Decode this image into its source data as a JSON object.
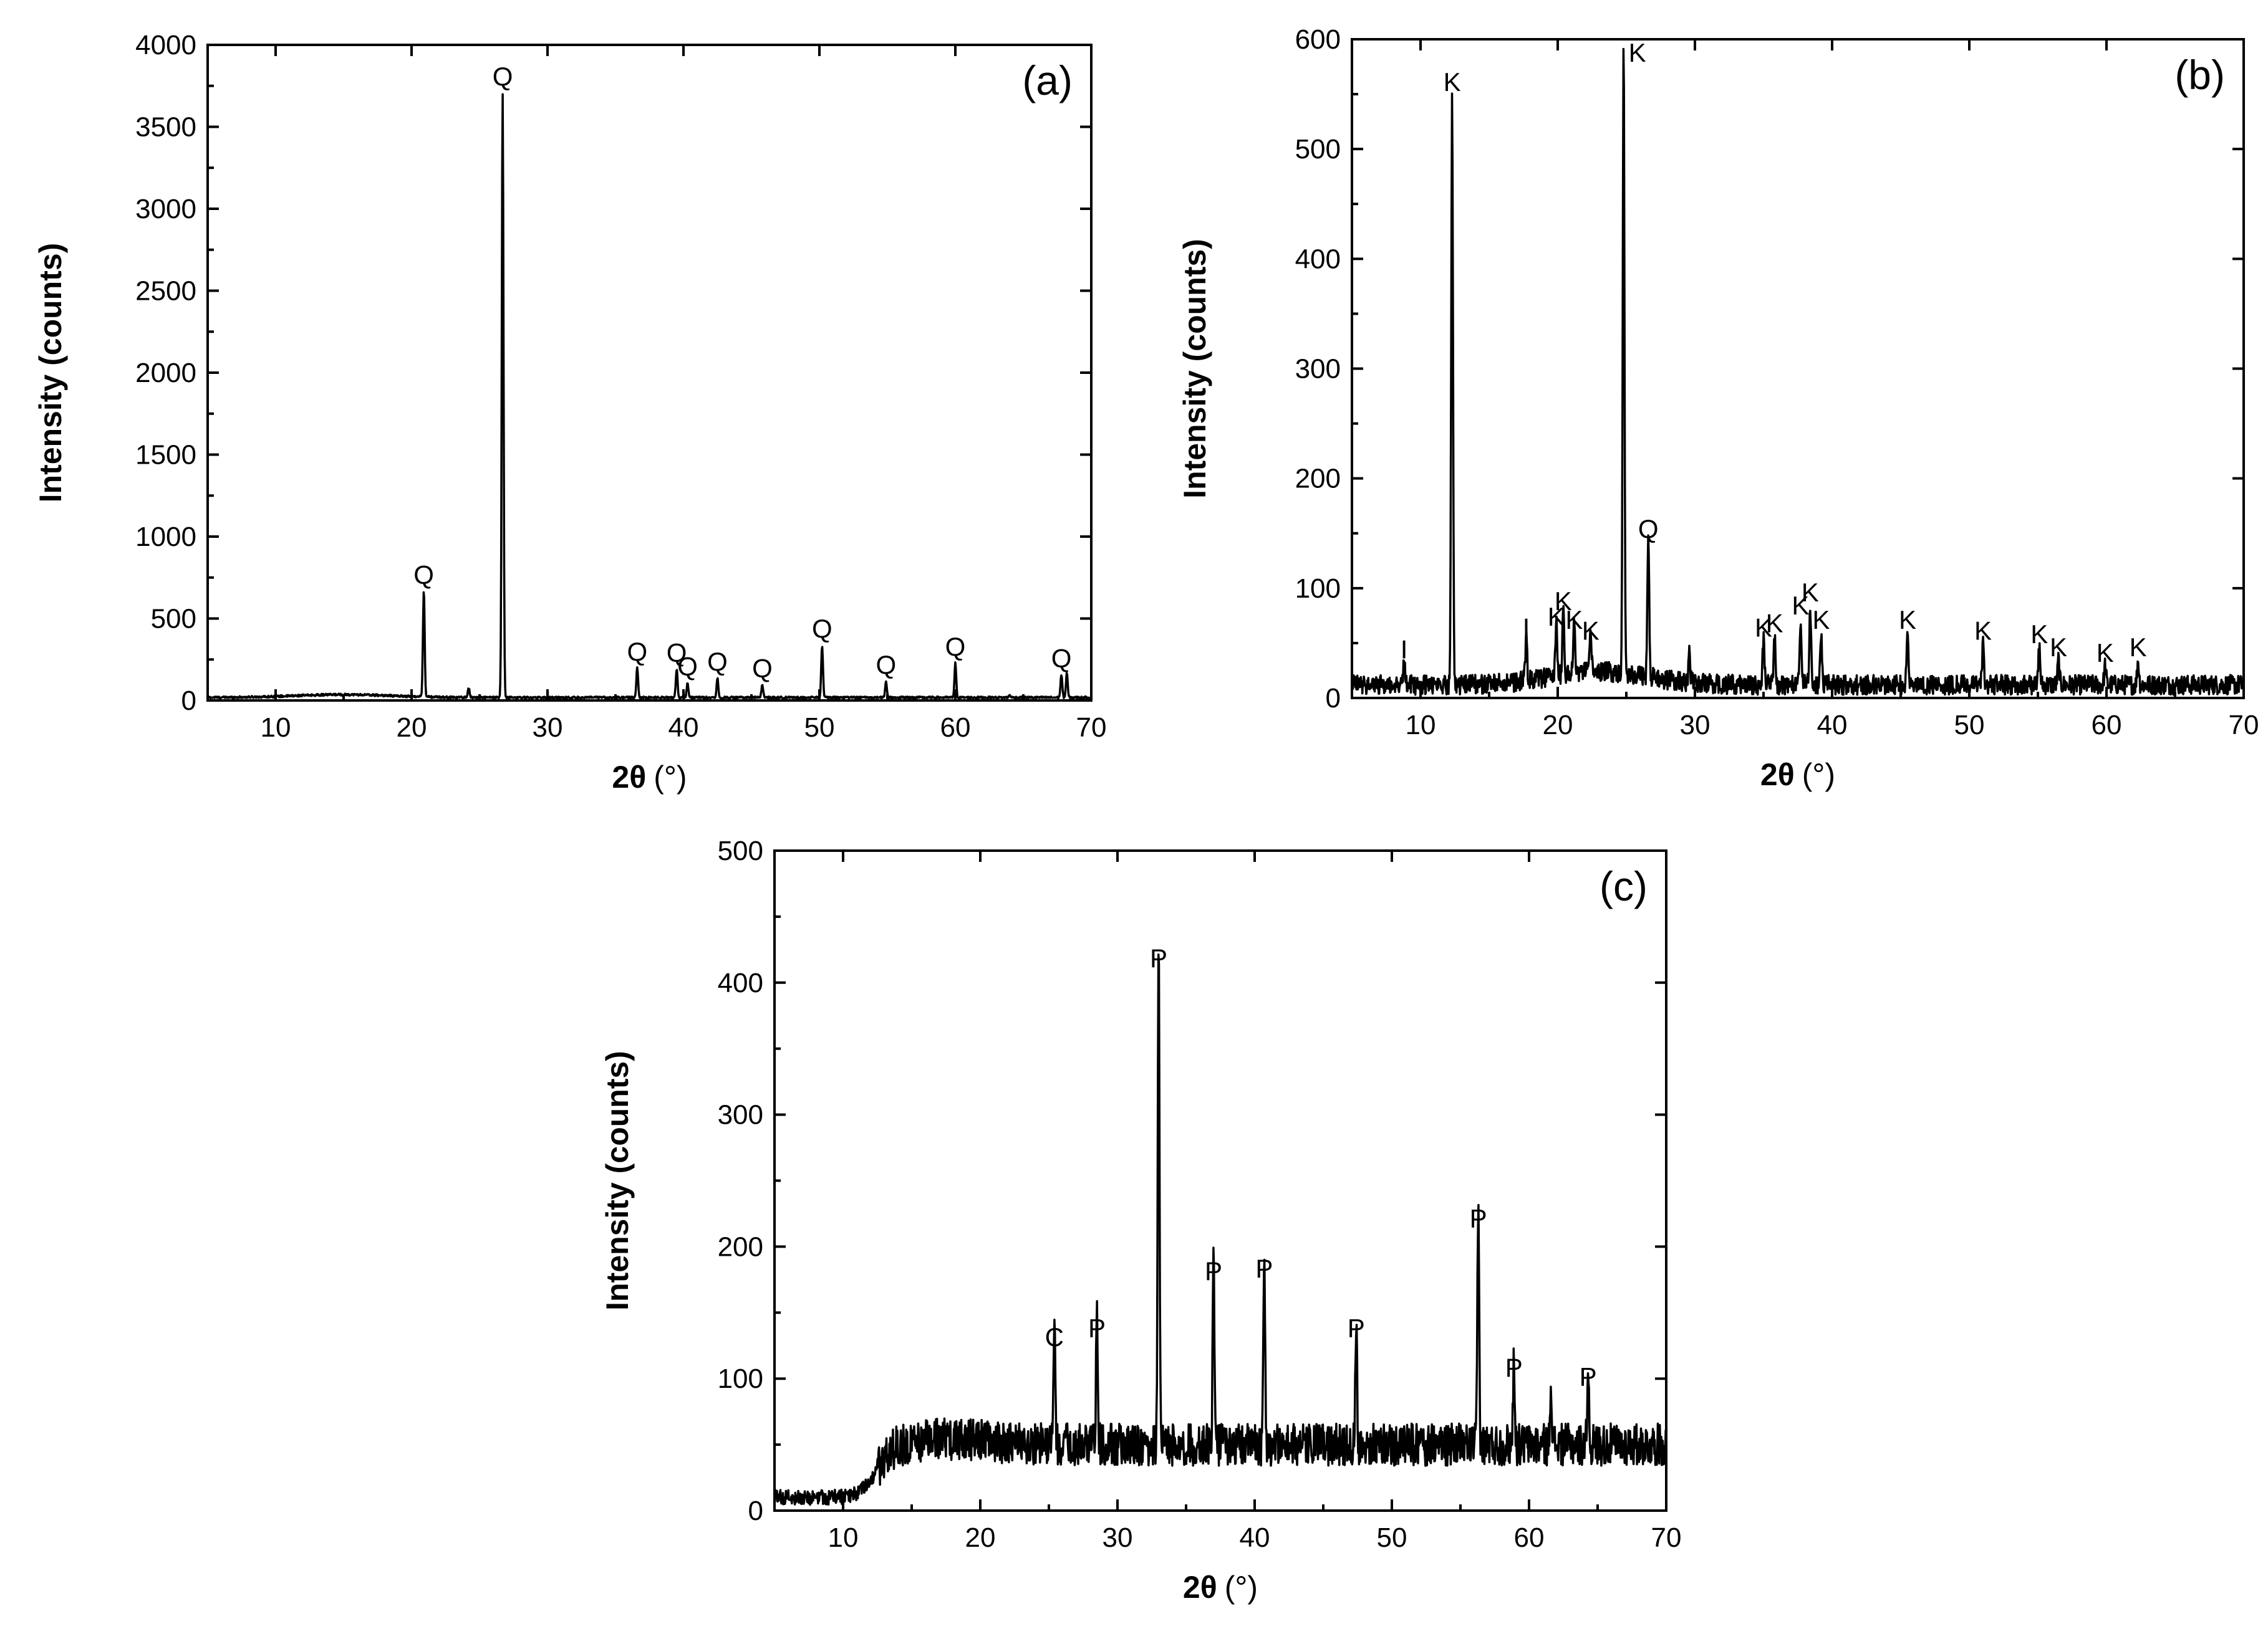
{
  "chart_data": [
    {
      "type": "line",
      "panel": "(a)",
      "xlabel_main": "2θ",
      "xlabel_unit": "(°)",
      "ylabel": "Intensity (counts)",
      "xlim": [
        5,
        70
      ],
      "ylim": [
        0,
        4000
      ],
      "x_ticks": [
        10,
        20,
        30,
        40,
        50,
        60,
        70
      ],
      "y_ticks": [
        0,
        500,
        1000,
        1500,
        2000,
        2500,
        3000,
        3500,
        4000
      ],
      "baseline": 18,
      "noise": 6,
      "hump": {
        "center": 15,
        "width": 5,
        "height": 18
      },
      "series": [
        {
          "peaks": [
            {
              "x": 20.9,
              "y": 660,
              "label": "Q"
            },
            {
              "x": 24.2,
              "y": 70,
              "label": ""
            },
            {
              "x": 26.7,
              "y": 3700,
              "label": "Q"
            },
            {
              "x": 36.6,
              "y": 190,
              "label": "Q"
            },
            {
              "x": 39.5,
              "y": 185,
              "label": "Q"
            },
            {
              "x": 40.3,
              "y": 100,
              "label": "Q"
            },
            {
              "x": 42.5,
              "y": 130,
              "label": "Q"
            },
            {
              "x": 45.8,
              "y": 90,
              "label": "Q"
            },
            {
              "x": 50.2,
              "y": 330,
              "label": "Q"
            },
            {
              "x": 54.9,
              "y": 110,
              "label": "Q"
            },
            {
              "x": 60.0,
              "y": 220,
              "label": "Q"
            },
            {
              "x": 64.0,
              "y": 25,
              "label": ""
            },
            {
              "x": 67.8,
              "y": 150,
              "label": "Q"
            },
            {
              "x": 68.2,
              "y": 160,
              "label": ""
            }
          ]
        }
      ]
    },
    {
      "type": "line",
      "panel": "(b)",
      "xlabel_main": "2θ",
      "xlabel_unit": "(°)",
      "ylabel": "Intensity (counts)",
      "xlim": [
        5,
        70
      ],
      "ylim": [
        0,
        600
      ],
      "x_ticks": [
        10,
        20,
        30,
        40,
        50,
        60,
        70
      ],
      "y_ticks": [
        0,
        100,
        200,
        300,
        400,
        500,
        600
      ],
      "baseline": 12,
      "noise": 9,
      "hump": {
        "center": 23,
        "width": 5,
        "height": 12
      },
      "series": [
        {
          "peaks": [
            {
              "x": 8.8,
              "y": 28,
              "label": "I"
            },
            {
              "x": 12.3,
              "y": 545,
              "label": "K"
            },
            {
              "x": 17.7,
              "y": 48,
              "label": "I"
            },
            {
              "x": 19.9,
              "y": 58,
              "label": "K"
            },
            {
              "x": 20.4,
              "y": 72,
              "label": "K"
            },
            {
              "x": 21.2,
              "y": 55,
              "label": "K"
            },
            {
              "x": 22.4,
              "y": 45,
              "label": "K"
            },
            {
              "x": 24.8,
              "y": 585,
              "label": "K"
            },
            {
              "x": 26.6,
              "y": 138,
              "label": "Q"
            },
            {
              "x": 29.6,
              "y": 35,
              "label": ""
            },
            {
              "x": 35.0,
              "y": 48,
              "label": "K"
            },
            {
              "x": 35.8,
              "y": 52,
              "label": "K"
            },
            {
              "x": 37.7,
              "y": 68,
              "label": "K"
            },
            {
              "x": 38.4,
              "y": 80,
              "label": "K"
            },
            {
              "x": 39.2,
              "y": 55,
              "label": "K"
            },
            {
              "x": 45.5,
              "y": 55,
              "label": "K"
            },
            {
              "x": 51.0,
              "y": 45,
              "label": "K"
            },
            {
              "x": 55.1,
              "y": 42,
              "label": "K"
            },
            {
              "x": 56.5,
              "y": 30,
              "label": "K"
            },
            {
              "x": 59.9,
              "y": 25,
              "label": "K"
            },
            {
              "x": 62.3,
              "y": 30,
              "label": "K"
            }
          ]
        }
      ]
    },
    {
      "type": "line",
      "panel": "(c)",
      "xlabel_main": "2θ",
      "xlabel_unit": "(°)",
      "ylabel": "Intensity (counts)",
      "xlim": [
        5,
        70
      ],
      "ylim": [
        0,
        500
      ],
      "x_ticks": [
        10,
        20,
        30,
        40,
        50,
        60,
        70
      ],
      "y_ticks": [
        0,
        100,
        200,
        300,
        400,
        500
      ],
      "baseline": 50,
      "low_level": 10,
      "step_center": 12.5,
      "noise": 16,
      "hump": {
        "center": 18,
        "width": 4,
        "height": 4
      },
      "series": [
        {
          "peaks": [
            {
              "x": 25.4,
              "y": 118,
              "label": "C"
            },
            {
              "x": 28.5,
              "y": 125,
              "label": "P"
            },
            {
              "x": 33.0,
              "y": 405,
              "label": "P"
            },
            {
              "x": 37.0,
              "y": 168,
              "label": "P"
            },
            {
              "x": 40.7,
              "y": 170,
              "label": "P"
            },
            {
              "x": 47.4,
              "y": 125,
              "label": "P"
            },
            {
              "x": 56.3,
              "y": 208,
              "label": "P"
            },
            {
              "x": 58.9,
              "y": 95,
              "label": "P"
            },
            {
              "x": 61.6,
              "y": 80,
              "label": ""
            },
            {
              "x": 64.3,
              "y": 88,
              "label": "P"
            }
          ]
        }
      ]
    }
  ]
}
